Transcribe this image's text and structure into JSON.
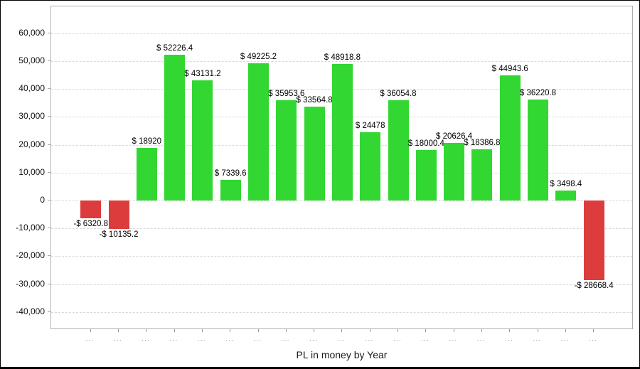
{
  "chart_data": {
    "type": "bar",
    "title": "PL in money by Year",
    "categories": [
      "...",
      "...",
      "...",
      "...",
      "...",
      "...",
      "...",
      "...",
      "...",
      "...",
      "...",
      "...",
      "...",
      "...",
      "...",
      "...",
      "...",
      "...",
      "..."
    ],
    "values": [
      -6320.8,
      -10135.2,
      18920,
      52226.4,
      43131.2,
      7339.6,
      49225.2,
      35953.6,
      33564.8,
      48918.8,
      24478,
      36054.8,
      18000.4,
      20626.4,
      18386.8,
      44943.6,
      36220.8,
      3498.4,
      -28668.4
    ],
    "bar_labels": [
      "-$ 6320.8",
      "-$ 10135.2",
      "$ 18920",
      "$ 52226.4",
      "$ 43131.2",
      "$ 7339.6",
      "$ 49225.2",
      "$ 35953.6",
      "$ 33564.8",
      "$ 48918.8",
      "$ 24478",
      "$ 36054.8",
      "$ 18000.4",
      "$ 20626.4",
      "$ 18386.8",
      "$ 44943.6",
      "$ 36220.8",
      "$ 3498.4",
      "-$ 28668.4"
    ],
    "positive_color": "#32d732",
    "negative_color": "#dd3c3c",
    "y_axis": {
      "tick_values": [
        60000,
        50000,
        40000,
        30000,
        20000,
        10000,
        0,
        -10000,
        -20000,
        -30000,
        -40000
      ],
      "tick_labels": [
        "60,000",
        "50,000",
        "40,000",
        "30,000",
        "20,000",
        "10,000",
        "0",
        "-10,000",
        "-20,000",
        "-30,000",
        "-40,000"
      ],
      "ylim": [
        -46400,
        69600
      ],
      "gridlines": "dashed"
    },
    "x_axis": {
      "label": "PL in money by Year"
    },
    "legend_position": "none"
  }
}
